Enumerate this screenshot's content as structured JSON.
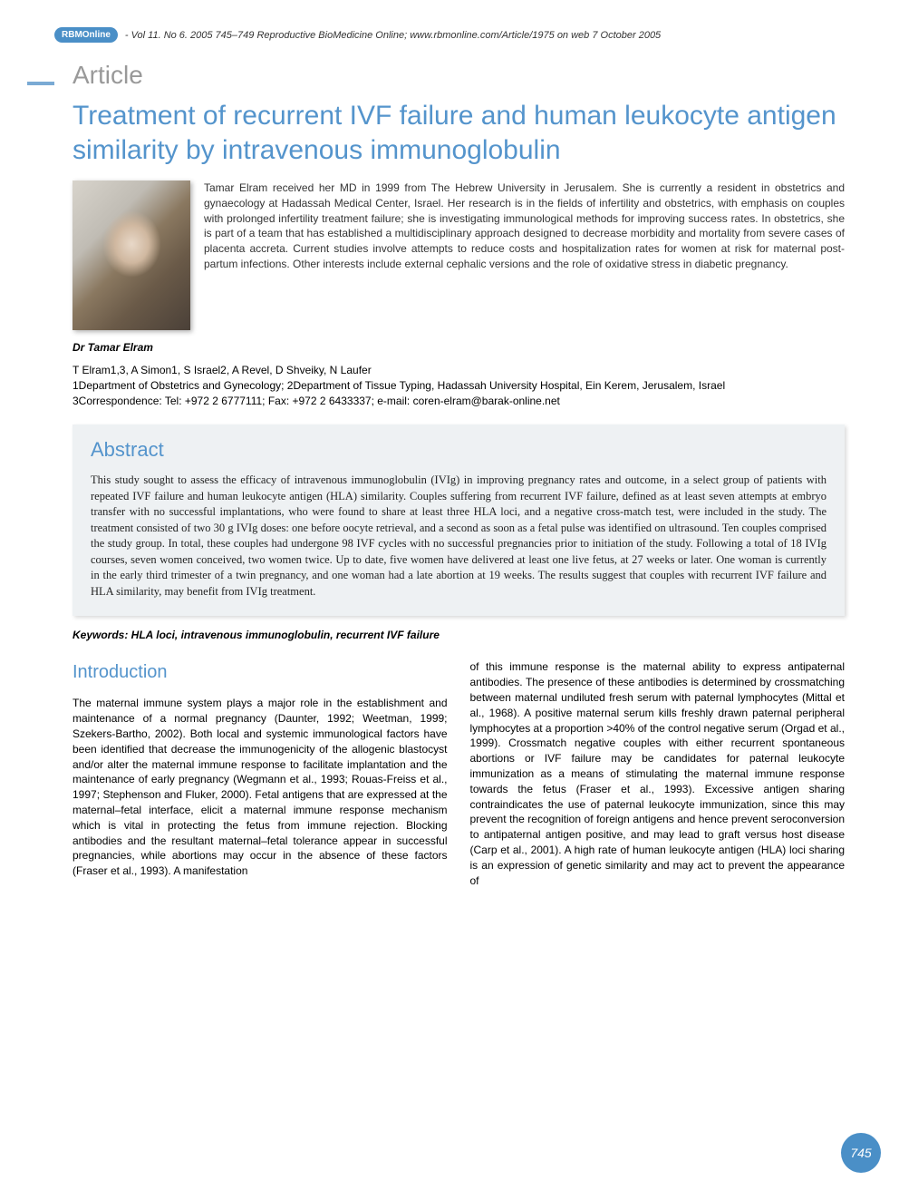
{
  "header": {
    "badge": "RBMOnline",
    "citation": "- Vol 11. No 6. 2005 745–749 Reproductive BioMedicine Online; www.rbmonline.com/Article/1975 on web 7 October 2005"
  },
  "article_label": "Article",
  "title": "Treatment of recurrent IVF failure and human leukocyte antigen similarity by intravenous immunoglobulin",
  "bio": "Tamar Elram received her MD in 1999 from The Hebrew University in Jerusalem. She is currently a resident in obstetrics and gynaecology at Hadassah Medical Center, Israel. Her research is in the fields of infertility and obstetrics, with emphasis on couples with prolonged infertility treatment failure; she is investigating immunological methods for improving success rates. In obstetrics, she is part of a team that has established a multidisciplinary approach designed to decrease morbidity and mortality from severe cases of placenta accreta. Current studies involve attempts to reduce costs and hospitalization rates for women at risk for maternal post-partum infections. Other interests include external cephalic versions and the role of oxidative stress in diabetic pregnancy.",
  "author_caption": "Dr Tamar Elram",
  "authors_line": "T Elram1,3, A Simon1, S Israel2, A Revel, D Shveiky, N Laufer",
  "affil1": "1Department of Obstetrics and Gynecology; 2Department of Tissue Typing, Hadassah University Hospital, Ein Kerem, Jerusalem, Israel",
  "affil2": "3Correspondence: Tel: +972 2 6777111; Fax: +972 2 6433337; e-mail: coren-elram@barak-online.net",
  "abstract": {
    "heading": "Abstract",
    "text": "This study sought to assess the efficacy of intravenous immunoglobulin (IVIg) in improving pregnancy rates and outcome, in a select group of patients with repeated IVF failure and human leukocyte antigen (HLA) similarity. Couples suffering from recurrent IVF failure, defined as at least seven attempts at embryo transfer with no successful implantations, who were found to share at least three HLA loci, and a negative cross-match test, were included in the study. The treatment consisted of two 30 g IVIg doses: one before oocyte retrieval, and a second as soon as a fetal pulse was identified on ultrasound. Ten couples comprised the study group. In total, these couples had undergone 98 IVF cycles with no successful pregnancies prior to initiation of the study. Following a total of 18 IVIg courses, seven women conceived, two women twice. Up to date, five women have delivered at least one live fetus, at 27 weeks or later. One woman is currently in the early third trimester of a twin pregnancy, and one woman had a late abortion at 19 weeks. The results suggest that couples with recurrent IVF failure and HLA similarity, may benefit from IVIg treatment."
  },
  "keywords": "Keywords: HLA loci, intravenous immunoglobulin, recurrent IVF failure",
  "introduction": {
    "heading": "Introduction",
    "col1": "The maternal immune system plays a major role in the establishment and maintenance of a normal pregnancy (Daunter, 1992; Weetman, 1999; Szekers-Bartho, 2002). Both local and systemic immunological factors have been identified that decrease the immunogenicity of the allogenic blastocyst and/or alter the maternal immune response to facilitate implantation and the maintenance of early pregnancy (Wegmann et al., 1993; Rouas-Freiss et al., 1997; Stephenson and Fluker, 2000). Fetal antigens that are expressed at the maternal–fetal interface, elicit a maternal immune response mechanism which is vital in protecting the fetus from immune rejection. Blocking antibodies and the resultant maternal–fetal tolerance appear in successful pregnancies, while abortions may occur in the absence of these factors (Fraser et al., 1993). A manifestation",
    "col2": "of this immune response is the maternal ability to express antipaternal antibodies. The presence of these antibodies is determined by crossmatching between maternal undiluted fresh serum with paternal lymphocytes (Mittal et al., 1968). A positive maternal serum kills freshly drawn paternal peripheral lymphocytes at a proportion >40% of the control negative serum (Orgad et al., 1999). Crossmatch negative couples with either recurrent spontaneous abortions or IVF failure may be candidates for paternal leukocyte immunization as a means of stimulating the maternal immune response towards the fetus (Fraser et al., 1993). Excessive antigen sharing contraindicates the use of paternal leukocyte immunization, since this may prevent the recognition of foreign antigens and hence prevent seroconversion to antipaternal antigen positive, and may lead to graft versus host disease (Carp et al., 2001). A high rate of human leukocyte antigen (HLA) loci sharing is an expression of genetic similarity and may act to prevent the appearance of"
  },
  "page_number": "745",
  "colors": {
    "accent": "#5494cc",
    "badge_bg": "#4a8fc7",
    "abstract_bg": "#eef1f3",
    "label_gray": "#999999"
  }
}
